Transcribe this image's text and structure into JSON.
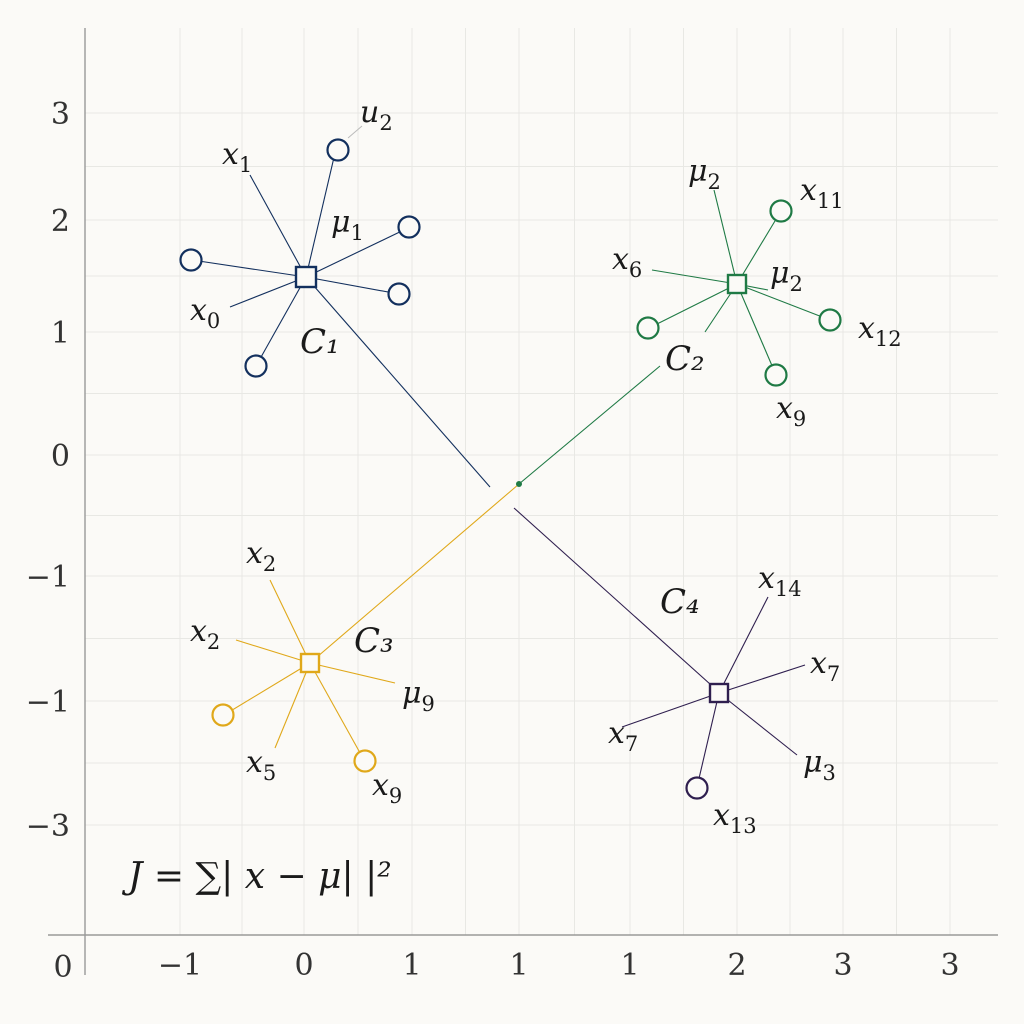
{
  "x_ticks": [
    "−1",
    "0",
    "1",
    "1",
    "1",
    "2",
    "3",
    "3"
  ],
  "y_ticks": [
    "3",
    "2",
    "1",
    "0",
    "−1",
    "−1",
    "−3"
  ],
  "origin_label": "0",
  "formula": "J = ∑| x − μ| |²",
  "colors": {
    "c1": "#13305e",
    "c2": "#1f7a45",
    "c3": "#e0a81a",
    "c4": "#2f1f4f",
    "grid": "#e8e8e4",
    "axis": "#999999"
  },
  "clusters": [
    {
      "id": "c1",
      "name": "C₁",
      "labels": [
        {
          "base": "x",
          "sub": "1"
        },
        {
          "base": "u",
          "sub": "2"
        },
        {
          "base": "μ",
          "sub": "1"
        },
        {
          "base": "x",
          "sub": "0"
        }
      ]
    },
    {
      "id": "c2",
      "name": "C₂",
      "labels": [
        {
          "base": "μ",
          "sub": "2"
        },
        {
          "base": "x",
          "sub": "11"
        },
        {
          "base": "x",
          "sub": "6"
        },
        {
          "base": "μ",
          "sub": "2"
        },
        {
          "base": "x",
          "sub": "12"
        },
        {
          "base": "x",
          "sub": "9"
        }
      ]
    },
    {
      "id": "c3",
      "name": "C₃",
      "labels": [
        {
          "base": "x",
          "sub": "2"
        },
        {
          "base": "x",
          "sub": "2"
        },
        {
          "base": "μ",
          "sub": "9"
        },
        {
          "base": "x",
          "sub": "5"
        },
        {
          "base": "x",
          "sub": "9"
        }
      ]
    },
    {
      "id": "c4",
      "name": "C₄",
      "labels": [
        {
          "base": "x",
          "sub": "14"
        },
        {
          "base": "x",
          "sub": "7"
        },
        {
          "base": "x",
          "sub": "7"
        },
        {
          "base": "μ",
          "sub": "3"
        },
        {
          "base": "x",
          "sub": "13"
        }
      ]
    }
  ]
}
